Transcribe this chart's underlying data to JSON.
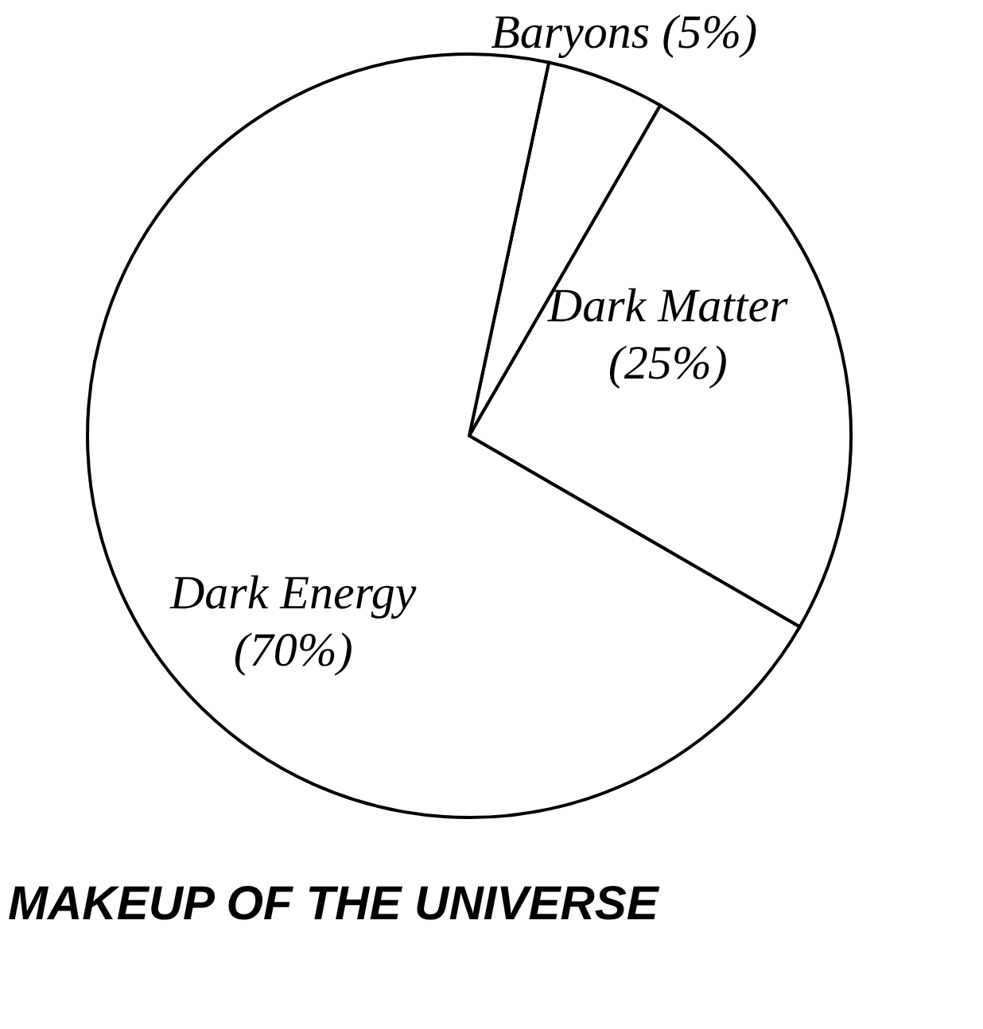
{
  "chart_data": {
    "type": "pie",
    "title": "MAKEUP OF THE UNIVERSE",
    "categories": [
      "Baryons",
      "Dark Matter",
      "Dark Energy"
    ],
    "values": [
      5,
      25,
      70
    ],
    "value_labels": [
      "(5%)",
      "(25%)",
      "(70%)"
    ],
    "colors": [
      "#ffffff",
      "#ffffff",
      "#ffffff"
    ],
    "legend": false
  }
}
